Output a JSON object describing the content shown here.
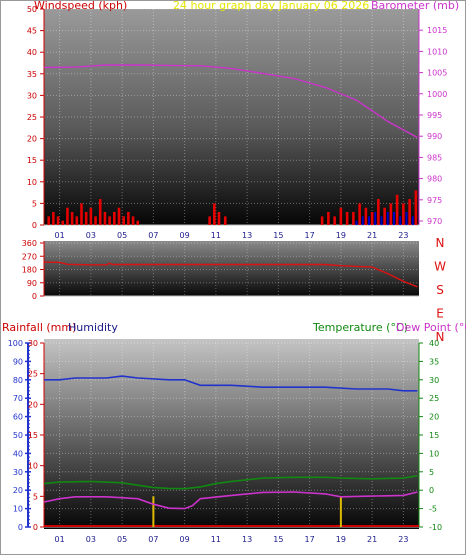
{
  "header": {
    "windspeed_label": "Windspeed (kph)",
    "title": "24 hour graph day   January 06 2026",
    "barometer_label": "Barometer (mb)",
    "rainfall_label": "Rainfall (mm)",
    "humidity_label": "Humidity",
    "temperature_label": "Temperature (°C)",
    "dewpoint_label": "Dew Point (°C)"
  },
  "colors": {
    "wind": "#e60000",
    "gust": "#0000cc",
    "barometer": "#cc33cc",
    "direction": "#dd1111",
    "humidity": "#2233cc",
    "temperature": "#118811",
    "dewpoint": "#cc33cc",
    "rainfall": "#cc0000",
    "rain_bar": "#ddbb00",
    "left_axis_red": "#cc0000",
    "right_axis_baro": "#cc33cc",
    "right_axis_temp": "#118811",
    "left_axis_hum": "#2233cc"
  },
  "chart_data": [
    {
      "type": "bar",
      "name": "wind",
      "x_ticks": [
        "01",
        "03",
        "05",
        "07",
        "09",
        "11",
        "13",
        "15",
        "17",
        "19",
        "21",
        "23"
      ],
      "left_axis": {
        "label": "Windspeed (kph)",
        "ylim": [
          0,
          50
        ],
        "ticks": [
          "0",
          "5",
          "10",
          "15",
          "20",
          "25",
          "30",
          "35",
          "40",
          "45",
          "50"
        ]
      },
      "right_axis": {
        "label": "Barometer (mb)",
        "ylim": [
          970,
          1020
        ],
        "ticks": [
          "970",
          "975",
          "980",
          "985",
          "990",
          "995",
          "1000",
          "1005",
          "1010",
          "1015"
        ]
      },
      "wind_hours": [
        0.3,
        0.6,
        0.9,
        1.2,
        1.5,
        1.8,
        2.1,
        2.4,
        2.7,
        3.0,
        3.3,
        3.6,
        3.9,
        4.2,
        4.5,
        4.8,
        5.1,
        5.4,
        5.7,
        6.0,
        10.6,
        10.9,
        11.2,
        11.6,
        17.8,
        18.2,
        18.6,
        19.0,
        19.4,
        19.8,
        20.2,
        20.6,
        21.0,
        21.4,
        21.8,
        22.2,
        22.6,
        23.0,
        23.4,
        23.8
      ],
      "wind_values": [
        2,
        3,
        2,
        1,
        4,
        3,
        2,
        5,
        3,
        4,
        2,
        6,
        3,
        2,
        3,
        4,
        2,
        3,
        2,
        1,
        2,
        5,
        3,
        2,
        2,
        3,
        2,
        4,
        3,
        3,
        5,
        4,
        3,
        6,
        4,
        5,
        7,
        5,
        6,
        8
      ],
      "gust_hours": [
        20.0,
        20.4,
        20.8,
        21.2,
        21.6,
        22.0,
        22.4,
        22.8,
        23.2,
        23.6
      ],
      "gust_values": [
        1,
        2,
        2,
        3,
        2,
        3,
        3,
        2,
        3,
        2
      ],
      "barometer": {
        "hours": [
          0,
          2,
          4,
          6,
          8,
          10,
          12,
          14,
          16,
          18,
          20,
          22,
          23.9
        ],
        "values": [
          1006.2,
          1006.3,
          1006.8,
          1006.8,
          1006.7,
          1006.6,
          1006.0,
          1004.8,
          1003.6,
          1001.5,
          998.5,
          993.5,
          989.7
        ]
      }
    },
    {
      "type": "line",
      "name": "wind_direction",
      "y_ticks": [
        "0",
        "90",
        "180",
        "270",
        "360"
      ],
      "ylim": [
        0,
        360
      ],
      "compass_labels": [
        "N",
        "W",
        "S",
        "E",
        "N"
      ],
      "hours": [
        0,
        1,
        1.5,
        3,
        4,
        4.2,
        4.4,
        5,
        8,
        12,
        16,
        18,
        19,
        21,
        22,
        23,
        23.9
      ],
      "values": [
        230,
        228,
        215,
        212,
        212,
        222,
        214,
        214,
        214,
        214,
        214,
        214,
        206,
        196,
        152,
        100,
        62
      ]
    },
    {
      "type": "line",
      "name": "rain_humidity_temperature",
      "x_ticks": [
        "01",
        "03",
        "05",
        "07",
        "09",
        "11",
        "13",
        "15",
        "17",
        "19",
        "21",
        "23"
      ],
      "hum_axis": {
        "label": "Humidity",
        "ylim": [
          0,
          100
        ],
        "ticks": [
          "0",
          "10",
          "20",
          "30",
          "40",
          "50",
          "60",
          "70",
          "80",
          "90",
          "100"
        ]
      },
      "rain_axis": {
        "label": "Rainfall (mm)",
        "ylim": [
          0,
          30
        ],
        "ticks": [
          "0",
          "5",
          "10",
          "15",
          "20",
          "25",
          "30"
        ]
      },
      "temp_axis": {
        "label": "Temperature (°C)",
        "ylim": [
          -10,
          40
        ],
        "ticks": [
          "-10",
          "-5",
          "0",
          "5",
          "10",
          "15",
          "20",
          "25",
          "30",
          "35",
          "40"
        ]
      },
      "humidity": {
        "hours": [
          0,
          1,
          2,
          3,
          4,
          5,
          6,
          8,
          9,
          10,
          12,
          14,
          16,
          18,
          20,
          22,
          23,
          23.9
        ],
        "values": [
          80,
          80,
          81,
          81,
          81,
          82,
          81,
          80,
          80,
          77,
          77,
          76,
          76,
          76,
          75,
          75,
          74,
          74
        ]
      },
      "temperature": {
        "hours": [
          0,
          1,
          3,
          5,
          7,
          8,
          9,
          10,
          11,
          12,
          14,
          16,
          18,
          19,
          21,
          23,
          23.9
        ],
        "values": [
          1.8,
          2.2,
          2.4,
          2.0,
          0.7,
          0.5,
          0.4,
          0.9,
          1.8,
          2.4,
          3.3,
          3.5,
          3.5,
          3.3,
          3.1,
          3.3,
          3.9
        ]
      },
      "dewpoint": {
        "hours": [
          0,
          1,
          2,
          4,
          6,
          7,
          8,
          9,
          9.5,
          10,
          12,
          14,
          16,
          18,
          19,
          21,
          23,
          23.9
        ],
        "values": [
          -3.2,
          -2.3,
          -1.8,
          -1.8,
          -2.3,
          -3.8,
          -4.9,
          -5.0,
          -4.2,
          -2.3,
          -1.4,
          -0.6,
          -0.5,
          -1.0,
          -1.8,
          -1.6,
          -1.4,
          -0.5
        ]
      },
      "rain_event_hours": [
        7.0,
        19.0
      ],
      "rain_event_heights": [
        5,
        5
      ]
    }
  ]
}
